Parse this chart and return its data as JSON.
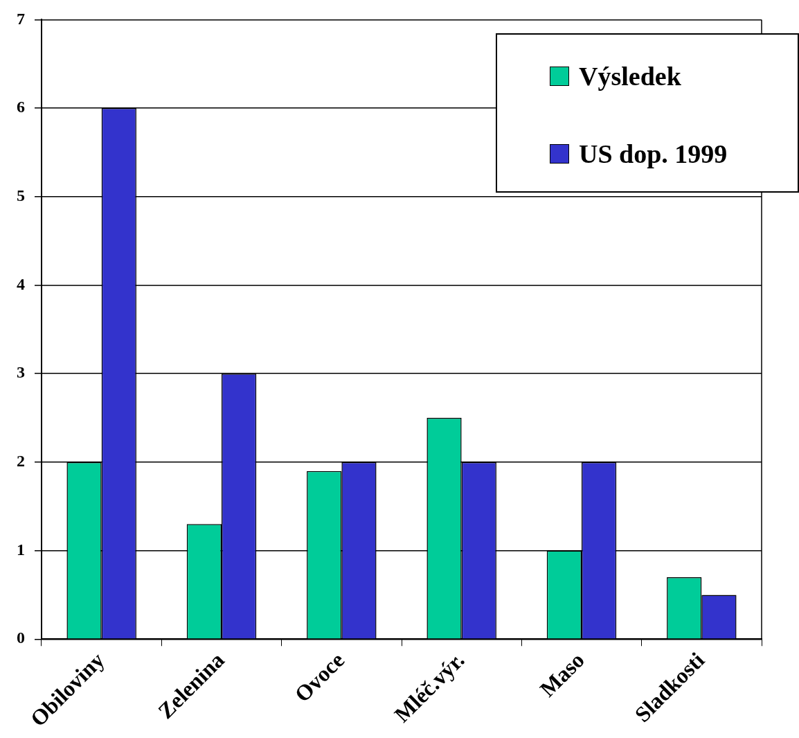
{
  "chart_data": {
    "type": "bar",
    "categories": [
      "Obiloviny",
      "Zelenina",
      "Ovoce",
      "Mléč.výr.",
      "Maso",
      "Sladkosti"
    ],
    "series": [
      {
        "name": "Výsledek",
        "color": "#00cc99",
        "values": [
          2,
          1.3,
          1.9,
          2.5,
          1,
          0.7
        ]
      },
      {
        "name": "US dop. 1999",
        "color": "#3333cc",
        "values": [
          6,
          3,
          2,
          2,
          2,
          0.5
        ]
      }
    ],
    "ylim": [
      0,
      7
    ],
    "yticks": [
      0,
      1,
      2,
      3,
      4,
      5,
      6,
      7
    ],
    "grid": "y",
    "legend": "top right"
  }
}
